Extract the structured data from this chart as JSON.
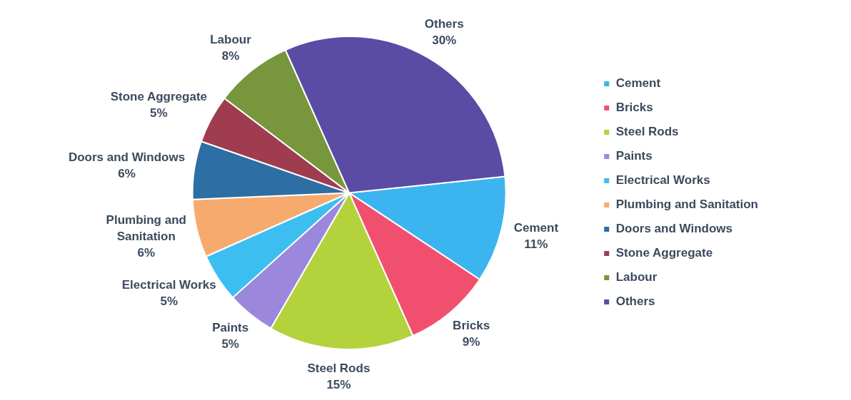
{
  "chart_data": {
    "type": "pie",
    "categories": [
      "Cement",
      "Bricks",
      "Steel Rods",
      "Paints",
      "Electrical Works",
      "Plumbing and Sanitation",
      "Doors and Windows",
      "Stone Aggregate",
      "Labour",
      "Others"
    ],
    "values": [
      11,
      9,
      15,
      5,
      5,
      6,
      6,
      5,
      8,
      30
    ],
    "value_labels": [
      "11%",
      "9%",
      "15%",
      "5%",
      "5%",
      "6%",
      "6%",
      "5%",
      "8%",
      "30%"
    ],
    "colors": [
      "#3cb4f0",
      "#f0506e",
      "#b4d23c",
      "#9b87dc",
      "#3cbef0",
      "#f7aa6e",
      "#2d6ea5",
      "#a03c50",
      "#78963c",
      "#5a4ba5"
    ],
    "legend": "right"
  }
}
